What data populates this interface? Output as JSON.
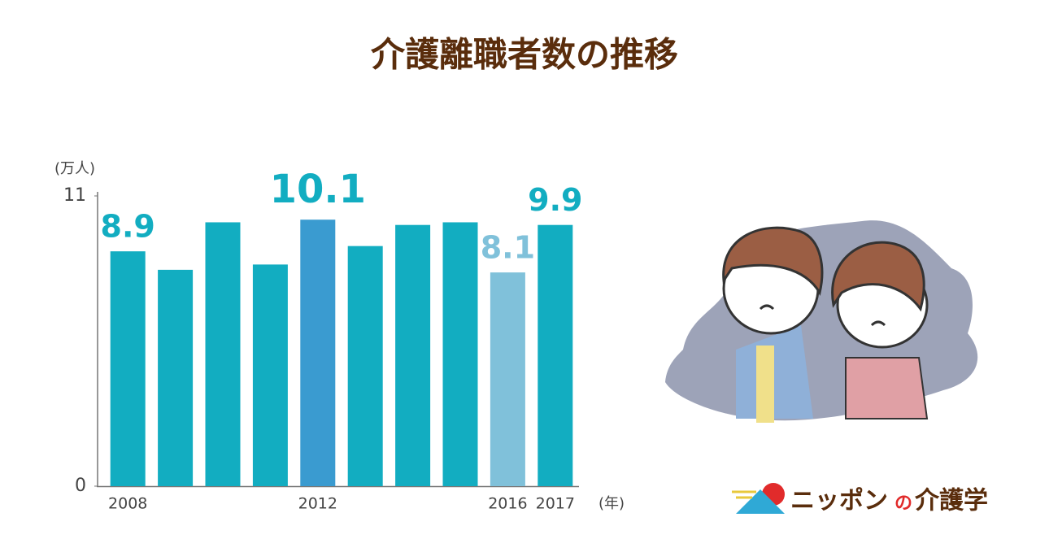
{
  "chart_data": {
    "type": "bar",
    "title": "介護離職者数の推移",
    "y_unit": "(万人)",
    "x_unit": "(年)",
    "categories": [
      "2008",
      null,
      null,
      null,
      "2012",
      null,
      null,
      null,
      "2016",
      "2017"
    ],
    "values": [
      8.9,
      8.2,
      10.0,
      8.4,
      10.1,
      9.1,
      9.9,
      10.0,
      8.1,
      9.9
    ],
    "value_labels": [
      "8.9",
      null,
      null,
      null,
      "10.1",
      null,
      null,
      null,
      "8.1",
      "9.9"
    ],
    "colors": [
      "#12adc1",
      "#12adc1",
      "#12adc1",
      "#12adc1",
      "#3a9bd0",
      "#12adc1",
      "#12adc1",
      "#12adc1",
      "#80c1da",
      "#12adc1"
    ],
    "ylim": [
      0,
      11
    ],
    "yticks": [
      0,
      11
    ],
    "grid": false
  },
  "logo": {
    "name1": "ニッポン",
    "particle": "の",
    "name2": "介護学"
  }
}
